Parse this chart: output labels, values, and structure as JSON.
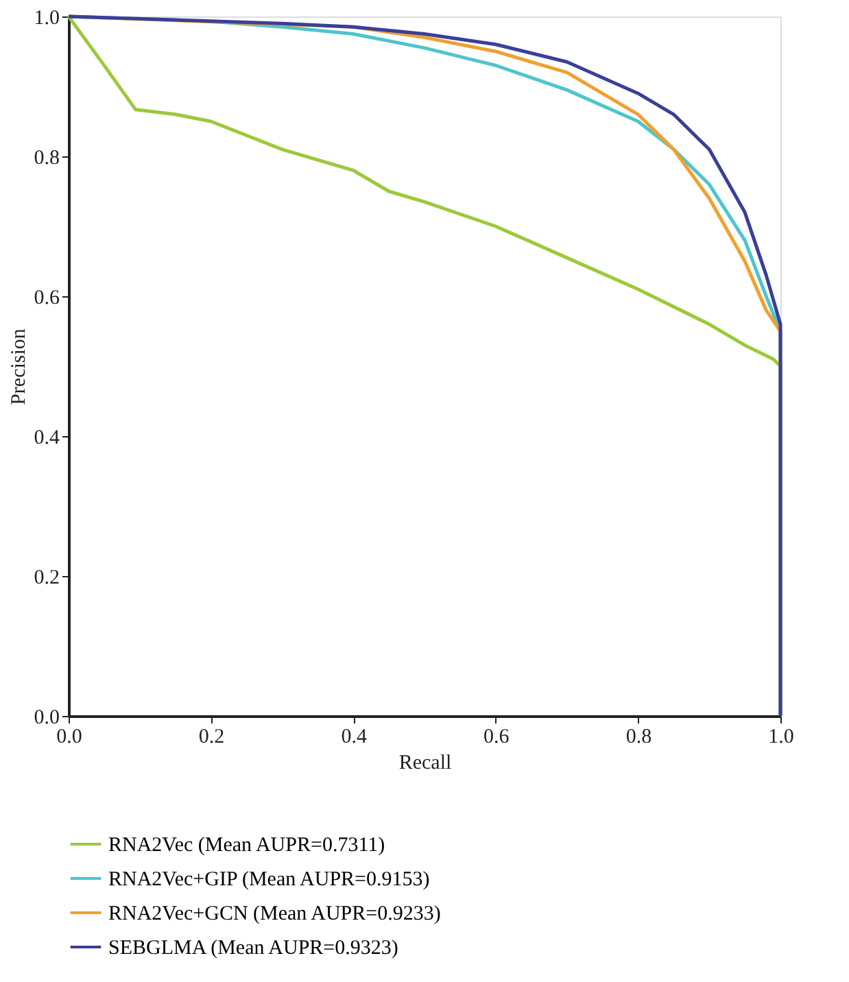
{
  "chart_data": {
    "type": "line",
    "xlabel": "Recall",
    "ylabel": "Precision",
    "xlim": [
      0,
      1
    ],
    "ylim": [
      0,
      1
    ],
    "xticks": [
      {
        "value": 0,
        "label": "0.0"
      },
      0.2,
      0.4,
      0.6,
      0.8,
      {
        "value": 1,
        "label": "1.0"
      }
    ],
    "yticks": [
      {
        "value": 0,
        "label": "0.0"
      },
      0.2,
      0.4,
      0.6,
      0.8,
      {
        "value": 1,
        "label": "1.0"
      }
    ],
    "grid": false,
    "legend": "bottom",
    "line_style": "solid",
    "marker": "none",
    "series": [
      {
        "name": "RNA2Vec (Mean AUPR=0.7311)",
        "color": "#9cc93a",
        "x": [
          0,
          0.05,
          0.094,
          0.15,
          0.2,
          0.3,
          0.4,
          0.45,
          0.5,
          0.6,
          0.7,
          0.8,
          0.9,
          0.95,
          0.99,
          1.0,
          1.0
        ],
        "values": [
          1.0,
          0.93,
          0.867,
          0.86,
          0.85,
          0.81,
          0.78,
          0.75,
          0.735,
          0.7,
          0.655,
          0.61,
          0.56,
          0.53,
          0.51,
          0.5,
          0.0
        ]
      },
      {
        "name": "RNA2Vec+GIP (Mean AUPR=0.9153)",
        "color": "#4fc4cc",
        "x": [
          0,
          0.2,
          0.3,
          0.4,
          0.5,
          0.6,
          0.7,
          0.8,
          0.85,
          0.9,
          0.95,
          0.98,
          1.0,
          1.0
        ],
        "values": [
          1.0,
          0.993,
          0.985,
          0.975,
          0.955,
          0.93,
          0.895,
          0.85,
          0.81,
          0.76,
          0.68,
          0.6,
          0.55,
          0.0
        ]
      },
      {
        "name": "RNA2Vec+GCN (Mean AUPR=0.9233)",
        "color": "#f0a030",
        "x": [
          0,
          0.4,
          0.5,
          0.6,
          0.7,
          0.8,
          0.85,
          0.9,
          0.95,
          0.98,
          1.0,
          1.0
        ],
        "values": [
          1.0,
          0.985,
          0.97,
          0.95,
          0.92,
          0.86,
          0.81,
          0.74,
          0.65,
          0.58,
          0.55,
          0.0
        ]
      },
      {
        "name": "SEBGLMA (Mean AUPR=0.9323)",
        "color": "#3a3f98",
        "x": [
          0,
          0.3,
          0.4,
          0.5,
          0.6,
          0.7,
          0.8,
          0.85,
          0.9,
          0.95,
          0.98,
          1.0,
          1.0
        ],
        "values": [
          1.0,
          0.99,
          0.985,
          0.975,
          0.96,
          0.935,
          0.89,
          0.86,
          0.81,
          0.72,
          0.63,
          0.56,
          0.0
        ]
      }
    ]
  }
}
